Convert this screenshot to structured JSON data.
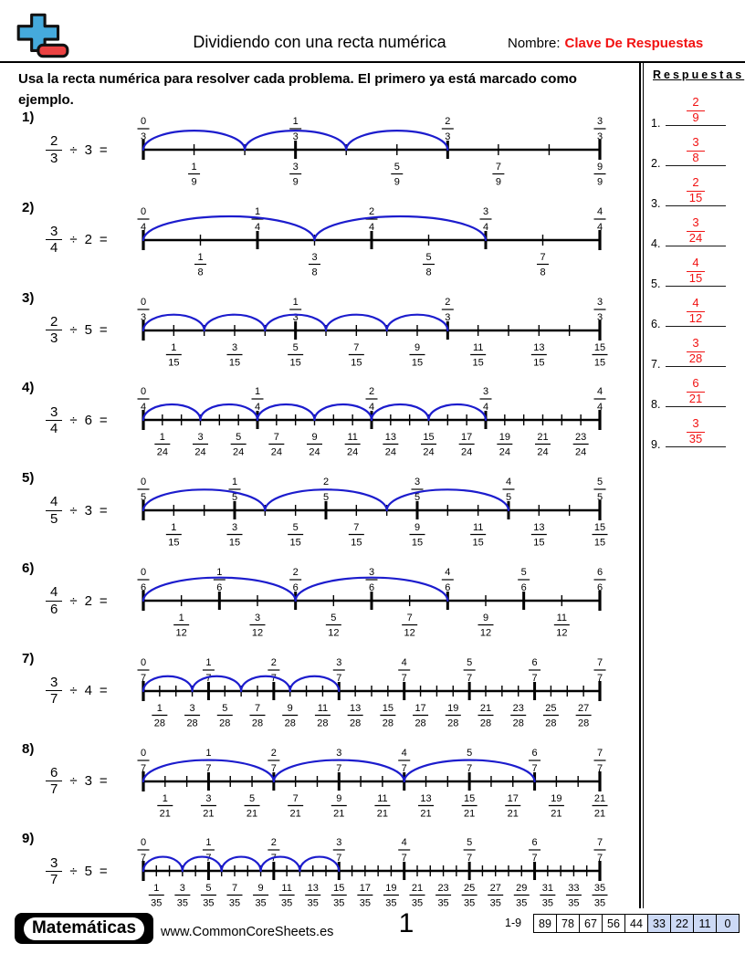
{
  "colors": {
    "accent_red": "#f11212",
    "arc_blue": "#1c1ccd",
    "score_highlight": "#ccd9f5",
    "logo_blue": "#45aadc",
    "logo_red": "#ec4242"
  },
  "header": {
    "title": "Dividiendo con una recta numérica",
    "name_label": "Nombre:",
    "name_value": "Clave De Respuestas"
  },
  "instructions": "Usa la recta numérica para resolver cada problema. El primero ya está marcado como ejemplo.",
  "answers": {
    "title": "Respuestas",
    "items": [
      {
        "index": "1.",
        "num": "2",
        "den": "9"
      },
      {
        "index": "2.",
        "num": "3",
        "den": "8"
      },
      {
        "index": "3.",
        "num": "2",
        "den": "15"
      },
      {
        "index": "4.",
        "num": "3",
        "den": "24"
      },
      {
        "index": "5.",
        "num": "4",
        "den": "15"
      },
      {
        "index": "6.",
        "num": "4",
        "den": "12"
      },
      {
        "index": "7.",
        "num": "3",
        "den": "28"
      },
      {
        "index": "8.",
        "num": "6",
        "den": "21"
      },
      {
        "index": "9.",
        "num": "3",
        "den": "35"
      }
    ]
  },
  "problems": [
    {
      "label": "1)",
      "dividend_num": "2",
      "dividend_den": "3",
      "op": "÷",
      "divisor": "3",
      "equals": "=",
      "numberline": {
        "total_parts": 9,
        "major_every": 3,
        "top_labels": [
          "0/3",
          "1/3",
          "2/3",
          "3/3"
        ],
        "bottom_labels": [
          "1/9",
          "3/9",
          "5/9",
          "7/9",
          "9/9"
        ],
        "arc_span_parts": 2,
        "arc_count": 3
      }
    },
    {
      "label": "2)",
      "dividend_num": "3",
      "dividend_den": "4",
      "op": "÷",
      "divisor": "2",
      "equals": "=",
      "numberline": {
        "total_parts": 8,
        "major_every": 2,
        "top_labels": [
          "0/4",
          "1/4",
          "2/4",
          "3/4",
          "4/4"
        ],
        "bottom_labels": [
          "1/8",
          "3/8",
          "5/8",
          "7/8"
        ],
        "arc_span_parts": 3,
        "arc_count": 2
      }
    },
    {
      "label": "3)",
      "dividend_num": "2",
      "dividend_den": "3",
      "op": "÷",
      "divisor": "5",
      "equals": "=",
      "numberline": {
        "total_parts": 15,
        "major_every": 5,
        "top_labels": [
          "0/3",
          "1/3",
          "2/3",
          "3/3"
        ],
        "bottom_labels": [
          "1/15",
          "3/15",
          "5/15",
          "7/15",
          "9/15",
          "11/15",
          "13/15",
          "15/15"
        ],
        "arc_span_parts": 2,
        "arc_count": 5
      }
    },
    {
      "label": "4)",
      "dividend_num": "3",
      "dividend_den": "4",
      "op": "÷",
      "divisor": "6",
      "equals": "=",
      "numberline": {
        "total_parts": 24,
        "major_every": 6,
        "top_labels": [
          "0/4",
          "1/4",
          "2/4",
          "3/4",
          "4/4"
        ],
        "bottom_labels": [
          "1/24",
          "3/24",
          "5/24",
          "7/24",
          "9/24",
          "11/24",
          "13/24",
          "15/24",
          "17/24",
          "19/24",
          "21/24",
          "23/24"
        ],
        "arc_span_parts": 3,
        "arc_count": 6
      }
    },
    {
      "label": "5)",
      "dividend_num": "4",
      "dividend_den": "5",
      "op": "÷",
      "divisor": "3",
      "equals": "=",
      "numberline": {
        "total_parts": 15,
        "major_every": 3,
        "top_labels": [
          "0/5",
          "1/5",
          "2/5",
          "3/5",
          "4/5",
          "5/5"
        ],
        "bottom_labels": [
          "1/15",
          "3/15",
          "5/15",
          "7/15",
          "9/15",
          "11/15",
          "13/15",
          "15/15"
        ],
        "arc_span_parts": 4,
        "arc_count": 3
      }
    },
    {
      "label": "6)",
      "dividend_num": "4",
      "dividend_den": "6",
      "op": "÷",
      "divisor": "2",
      "equals": "=",
      "numberline": {
        "total_parts": 12,
        "major_every": 2,
        "top_labels": [
          "0/6",
          "1/6",
          "2/6",
          "3/6",
          "4/6",
          "5/6",
          "6/6"
        ],
        "bottom_labels": [
          "1/12",
          "3/12",
          "5/12",
          "7/12",
          "9/12",
          "11/12"
        ],
        "arc_span_parts": 4,
        "arc_count": 2
      }
    },
    {
      "label": "7)",
      "dividend_num": "3",
      "dividend_den": "7",
      "op": "÷",
      "divisor": "4",
      "equals": "=",
      "numberline": {
        "total_parts": 28,
        "major_every": 4,
        "top_labels": [
          "0/7",
          "1/7",
          "2/7",
          "3/7",
          "4/7",
          "5/7",
          "6/7",
          "7/7"
        ],
        "bottom_labels": [
          "1/28",
          "3/28",
          "5/28",
          "7/28",
          "9/28",
          "11/28",
          "13/28",
          "15/28",
          "17/28",
          "19/28",
          "21/28",
          "23/28",
          "25/28",
          "27/28"
        ],
        "arc_span_parts": 3,
        "arc_count": 4
      }
    },
    {
      "label": "8)",
      "dividend_num": "6",
      "dividend_den": "7",
      "op": "÷",
      "divisor": "3",
      "equals": "=",
      "numberline": {
        "total_parts": 21,
        "major_every": 3,
        "top_labels": [
          "0/7",
          "1/7",
          "2/7",
          "3/7",
          "4/7",
          "5/7",
          "6/7",
          "7/7"
        ],
        "bottom_labels": [
          "1/21",
          "3/21",
          "5/21",
          "7/21",
          "9/21",
          "11/21",
          "13/21",
          "15/21",
          "17/21",
          "19/21",
          "21/21"
        ],
        "arc_span_parts": 6,
        "arc_count": 3
      }
    },
    {
      "label": "9)",
      "dividend_num": "3",
      "dividend_den": "7",
      "op": "÷",
      "divisor": "5",
      "equals": "=",
      "numberline": {
        "total_parts": 35,
        "major_every": 5,
        "top_labels": [
          "0/7",
          "1/7",
          "2/7",
          "3/7",
          "4/7",
          "5/7",
          "6/7",
          "7/7"
        ],
        "bottom_labels": [
          "1/35",
          "3/35",
          "5/35",
          "7/35",
          "9/35",
          "11/35",
          "13/35",
          "15/35",
          "17/35",
          "19/35",
          "21/35",
          "23/35",
          "25/35",
          "27/35",
          "29/35",
          "31/35",
          "33/35",
          "35/35"
        ],
        "arc_span_parts": 3,
        "arc_count": 5
      }
    }
  ],
  "footer": {
    "brand": "Matemáticas",
    "site": "www.CommonCoreSheets.es",
    "page": "1",
    "range": "1-9",
    "scores": [
      "89",
      "78",
      "67",
      "56",
      "44",
      "33",
      "22",
      "11",
      "0"
    ],
    "highlight_start_index": 5
  }
}
